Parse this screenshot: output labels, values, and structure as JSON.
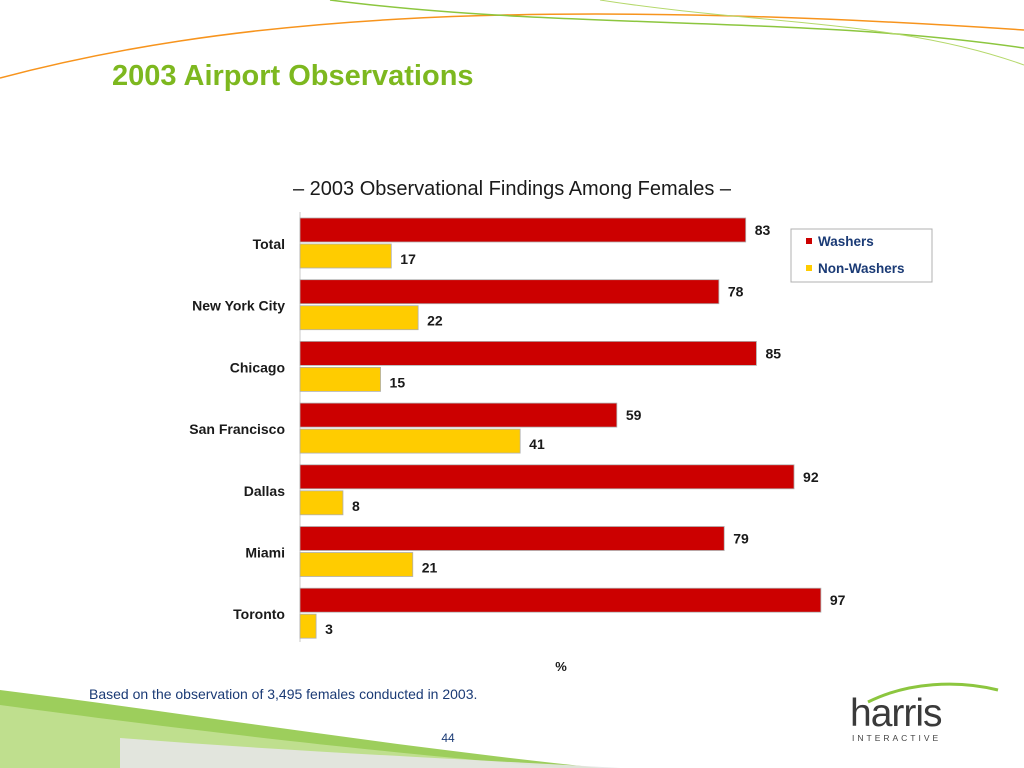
{
  "slide": {
    "title": "2003 Airport Observations",
    "footnote": "Based on the observation of 3,495 females conducted in 2003.",
    "page_number": "44"
  },
  "logo": {
    "word": "harris",
    "sub": "INTERACTIVE"
  },
  "colors": {
    "title": "#7DB81F",
    "washers": "#CC0000",
    "non_washers": "#FFCC00",
    "swoosh_green": "#8CC63F",
    "swoosh_orange": "#F7941D"
  },
  "chart_data": {
    "type": "bar",
    "orientation": "horizontal",
    "title": "– 2003 Observational Findings Among Females –",
    "xlabel": "%",
    "xlim": [
      0,
      100
    ],
    "grid": false,
    "legend_position": "top-right",
    "categories": [
      "Total",
      "New York City",
      "Chicago",
      "San Francisco",
      "Dallas",
      "Miami",
      "Toronto"
    ],
    "series": [
      {
        "name": "Washers",
        "color": "#CC0000",
        "values": [
          83,
          78,
          85,
          59,
          92,
          79,
          97
        ]
      },
      {
        "name": "Non-Washers",
        "color": "#FFCC00",
        "values": [
          17,
          22,
          15,
          41,
          8,
          21,
          3
        ]
      }
    ]
  }
}
